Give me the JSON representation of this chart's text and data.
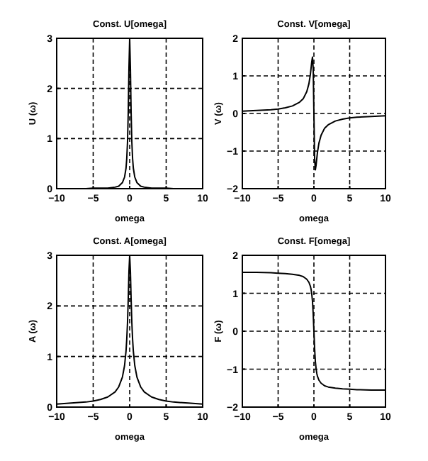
{
  "chart_data": [
    {
      "type": "line",
      "title": "Const. U[omega]",
      "xlabel": "omega",
      "ylabel": "U (ω)",
      "x": [
        -10,
        -8,
        -6,
        -5,
        -4,
        -3,
        -2,
        -1.5,
        -1,
        -0.7,
        -0.5,
        -0.4,
        -0.3,
        -0.2,
        -0.1,
        0,
        0.1,
        0.2,
        0.3,
        0.4,
        0.5,
        0.7,
        1,
        1.5,
        2,
        3,
        4,
        5,
        6,
        8,
        10
      ],
      "series": [
        {
          "color": "#000000",
          "values": [
            0,
            0,
            0,
            0.01,
            0.01,
            0.01,
            0.03,
            0.05,
            0.12,
            0.23,
            0.41,
            0.6,
            0.92,
            1.5,
            2.4,
            3,
            2.4,
            1.5,
            0.92,
            0.6,
            0.41,
            0.23,
            0.12,
            0.05,
            0.03,
            0.01,
            0.01,
            0.01,
            0,
            0,
            0
          ]
        }
      ],
      "xlim": [
        -10,
        10
      ],
      "xticks": [
        -10,
        -5,
        0,
        5,
        10
      ],
      "ylim": [
        0,
        3
      ],
      "yticks": [
        0,
        1,
        2,
        3
      ],
      "grid": true,
      "line_style": "solid"
    },
    {
      "type": "line",
      "title": "Const. V[omega]",
      "xlabel": "omega",
      "ylabel": "V (ω)",
      "x": [
        -10,
        -8,
        -6,
        -5,
        -4,
        -3,
        -2,
        -1.5,
        -1,
        -0.7,
        -0.5,
        -0.4,
        -0.3,
        -0.2,
        -0.1,
        0,
        0.1,
        0.2,
        0.3,
        0.4,
        0.5,
        0.7,
        1,
        1.5,
        2,
        3,
        4,
        5,
        6,
        8,
        10
      ],
      "series": [
        {
          "color": "#000000",
          "values": [
            0.06,
            0.08,
            0.1,
            0.12,
            0.15,
            0.2,
            0.3,
            0.39,
            0.58,
            0.79,
            1.03,
            1.2,
            1.38,
            1.5,
            1.2,
            0,
            -1.2,
            -1.5,
            -1.38,
            -1.2,
            -1.03,
            -0.79,
            -0.58,
            -0.39,
            -0.3,
            -0.2,
            -0.15,
            -0.12,
            -0.1,
            -0.08,
            -0.06
          ]
        }
      ],
      "xlim": [
        -10,
        10
      ],
      "xticks": [
        -10,
        -5,
        0,
        5,
        10
      ],
      "ylim": [
        -2,
        2
      ],
      "yticks": [
        -2,
        -1,
        0,
        1,
        2
      ],
      "grid": true,
      "line_style": "solid"
    },
    {
      "type": "line",
      "title": "Const. A[omega]",
      "xlabel": "omega",
      "ylabel": "A (ω)",
      "x": [
        -10,
        -8,
        -6,
        -5,
        -4,
        -3,
        -2,
        -1.5,
        -1,
        -0.7,
        -0.5,
        -0.4,
        -0.3,
        -0.2,
        -0.1,
        0,
        0.1,
        0.2,
        0.3,
        0.4,
        0.5,
        0.7,
        1,
        1.5,
        2,
        3,
        4,
        5,
        6,
        8,
        10
      ],
      "series": [
        {
          "color": "#000000",
          "values": [
            0.06,
            0.08,
            0.1,
            0.12,
            0.15,
            0.2,
            0.3,
            0.4,
            0.59,
            0.82,
            1.11,
            1.34,
            1.66,
            2.12,
            2.68,
            3,
            2.68,
            2.12,
            1.66,
            1.34,
            1.11,
            0.82,
            0.59,
            0.4,
            0.3,
            0.2,
            0.15,
            0.12,
            0.1,
            0.08,
            0.06
          ]
        }
      ],
      "xlim": [
        -10,
        10
      ],
      "xticks": [
        -10,
        -5,
        0,
        5,
        10
      ],
      "ylim": [
        0,
        3
      ],
      "yticks": [
        0,
        1,
        2,
        3
      ],
      "grid": true,
      "line_style": "solid"
    },
    {
      "type": "line",
      "title": "Const. F[omega]",
      "xlabel": "omega",
      "ylabel": "F (ω)",
      "x": [
        -10,
        -8,
        -6,
        -5,
        -4,
        -3,
        -2,
        -1.5,
        -1,
        -0.7,
        -0.5,
        -0.4,
        -0.3,
        -0.2,
        -0.1,
        0,
        0.1,
        0.2,
        0.3,
        0.4,
        0.5,
        0.7,
        1,
        1.5,
        2,
        3,
        4,
        5,
        6,
        8,
        10
      ],
      "series": [
        {
          "color": "#000000",
          "values": [
            1.55,
            1.55,
            1.54,
            1.53,
            1.52,
            1.5,
            1.47,
            1.44,
            1.37,
            1.29,
            1.19,
            1.11,
            0.98,
            0.79,
            0.46,
            0,
            -0.46,
            -0.79,
            -0.98,
            -1.11,
            -1.19,
            -1.29,
            -1.37,
            -1.44,
            -1.47,
            -1.5,
            -1.52,
            -1.53,
            -1.54,
            -1.55,
            -1.55
          ]
        }
      ],
      "xlim": [
        -10,
        10
      ],
      "xticks": [
        -10,
        -5,
        0,
        5,
        10
      ],
      "ylim": [
        -2,
        2
      ],
      "yticks": [
        -2,
        -1,
        0,
        1,
        2
      ],
      "grid": true,
      "line_style": "solid"
    }
  ]
}
